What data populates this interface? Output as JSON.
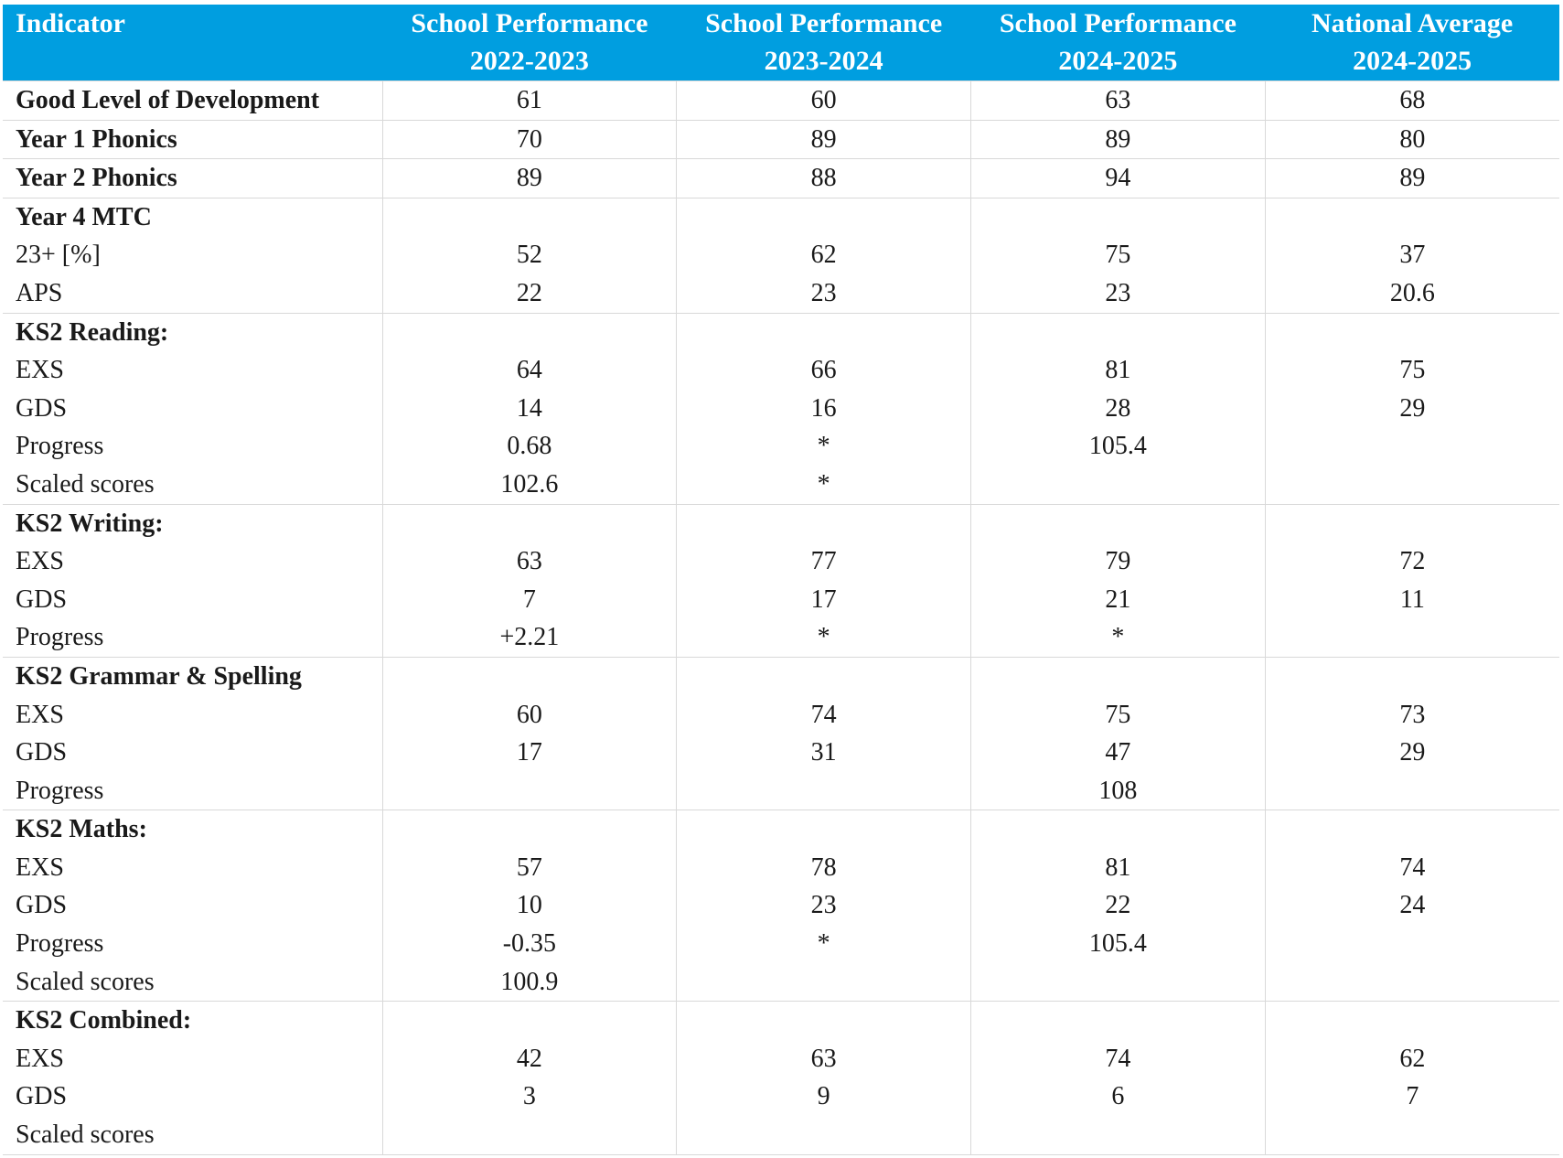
{
  "header": {
    "indicator": "Indicator",
    "col1": [
      "School Performance",
      "2022-2023"
    ],
    "col2": [
      "School Performance",
      "2023-2024"
    ],
    "col3": [
      "School Performance",
      "2024-2025"
    ],
    "col4": [
      "National Average",
      "2024-2025"
    ]
  },
  "groups": [
    {
      "rows": [
        {
          "label": "Good Level of Development",
          "bold": true,
          "values": [
            "61",
            "60",
            "63",
            "68"
          ]
        }
      ]
    },
    {
      "rows": [
        {
          "label": "Year 1 Phonics",
          "bold": true,
          "values": [
            "70",
            "89",
            "89",
            "80"
          ]
        }
      ]
    },
    {
      "rows": [
        {
          "label": "Year 2 Phonics",
          "bold": true,
          "values": [
            "89",
            "88",
            "94",
            "89"
          ]
        }
      ]
    },
    {
      "rows": [
        {
          "label": "Year 4 MTC",
          "bold": true,
          "values": [
            "",
            "",
            "",
            ""
          ]
        },
        {
          "label": "23+ [%]",
          "bold": false,
          "values": [
            "52",
            "62",
            "75",
            "37"
          ]
        },
        {
          "label": "APS",
          "bold": false,
          "values": [
            "22",
            "23",
            "23",
            "20.6"
          ]
        }
      ]
    },
    {
      "rows": [
        {
          "label": "KS2 Reading:",
          "bold": true,
          "values": [
            "",
            "",
            "",
            ""
          ]
        },
        {
          "label": "EXS",
          "bold": false,
          "values": [
            "64",
            "66",
            "81",
            "75"
          ]
        },
        {
          "label": "GDS",
          "bold": false,
          "values": [
            "14",
            "16",
            "28",
            "29"
          ]
        },
        {
          "label": "Progress",
          "bold": false,
          "values": [
            "0.68",
            "*",
            "105.4",
            ""
          ]
        },
        {
          "label": "Scaled scores",
          "bold": false,
          "values": [
            "102.6",
            "*",
            "",
            ""
          ]
        }
      ]
    },
    {
      "rows": [
        {
          "label": "KS2 Writing:",
          "bold": true,
          "values": [
            "",
            "",
            "",
            ""
          ]
        },
        {
          "label": "EXS",
          "bold": false,
          "values": [
            "63",
            "77",
            "79",
            "72"
          ]
        },
        {
          "label": "GDS",
          "bold": false,
          "values": [
            "7",
            "17",
            "21",
            "11"
          ]
        },
        {
          "label": "Progress",
          "bold": false,
          "values": [
            "+2.21",
            "*",
            "*",
            ""
          ]
        }
      ]
    },
    {
      "rows": [
        {
          "label": "KS2 Grammar & Spelling",
          "bold": true,
          "values": [
            "",
            "",
            "",
            ""
          ]
        },
        {
          "label": "EXS",
          "bold": false,
          "values": [
            "60",
            "74",
            "75",
            "73"
          ]
        },
        {
          "label": "GDS",
          "bold": false,
          "values": [
            "17",
            "31",
            "47",
            "29"
          ]
        },
        {
          "label": "Progress",
          "bold": false,
          "values": [
            "",
            "",
            "108",
            ""
          ]
        }
      ]
    },
    {
      "rows": [
        {
          "label": "KS2 Maths:",
          "bold": true,
          "values": [
            "",
            "",
            "",
            ""
          ]
        },
        {
          "label": "EXS",
          "bold": false,
          "values": [
            "57",
            "78",
            "81",
            "74"
          ]
        },
        {
          "label": "GDS",
          "bold": false,
          "values": [
            "10",
            "23",
            "22",
            "24"
          ]
        },
        {
          "label": "Progress",
          "bold": false,
          "values": [
            "-0.35",
            "*",
            "105.4",
            ""
          ]
        },
        {
          "label": "Scaled scores",
          "bold": false,
          "values": [
            "100.9",
            "",
            "",
            ""
          ]
        }
      ]
    },
    {
      "rows": [
        {
          "label": "KS2 Combined:",
          "bold": true,
          "values": [
            "",
            "",
            "",
            ""
          ]
        },
        {
          "label": "EXS",
          "bold": false,
          "values": [
            "42",
            "63",
            "74",
            "62"
          ]
        },
        {
          "label": "GDS",
          "bold": false,
          "values": [
            "3",
            "9",
            "6",
            "7"
          ]
        },
        {
          "label": "Scaled scores",
          "bold": false,
          "values": [
            "",
            "",
            "",
            ""
          ]
        }
      ]
    }
  ],
  "colors": {
    "header_bg": "#009ee0",
    "header_text": "#ffffff",
    "grid": "#d9d9d9"
  }
}
